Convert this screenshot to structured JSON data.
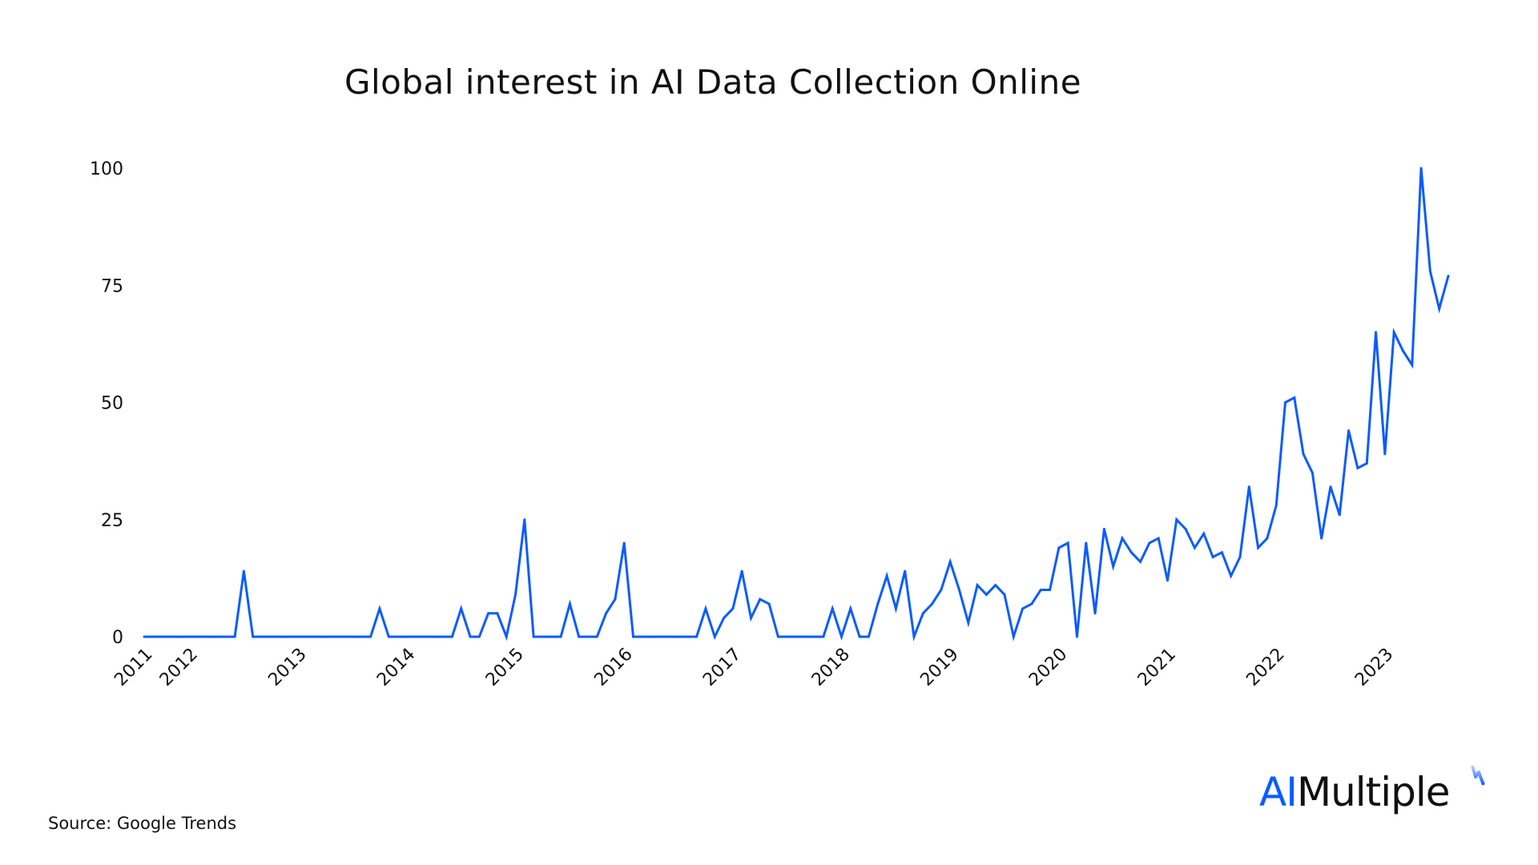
{
  "chart_data": {
    "type": "line",
    "title": "Global interest in AI Data Collection Online",
    "xlabel": "",
    "ylabel": "",
    "ylim": [
      0,
      100
    ],
    "yticks": [
      0,
      25,
      50,
      75,
      100
    ],
    "ytick_labels": [
      "0",
      "25",
      "50",
      "75",
      "100"
    ],
    "xtick_labels": [
      {
        "label": "2011",
        "index": 1
      },
      {
        "label": "2012",
        "index": 6
      },
      {
        "label": "2013",
        "index": 18
      },
      {
        "label": "2014",
        "index": 30
      },
      {
        "label": "2015",
        "index": 42
      },
      {
        "label": "2016",
        "index": 54
      },
      {
        "label": "2017",
        "index": 66
      },
      {
        "label": "2018",
        "index": 78
      },
      {
        "label": "2019",
        "index": 90
      },
      {
        "label": "2020",
        "index": 102
      },
      {
        "label": "2021",
        "index": 114
      },
      {
        "label": "2022",
        "index": 126
      },
      {
        "label": "2023",
        "index": 138
      }
    ],
    "grid": false,
    "series": [
      {
        "name": "AI Data Collection Online",
        "color": "#0a5cff",
        "values": [
          0,
          0,
          0,
          0,
          0,
          0,
          0,
          0,
          0,
          0,
          0,
          14,
          0,
          0,
          0,
          0,
          0,
          0,
          0,
          0,
          0,
          0,
          0,
          0,
          0,
          0,
          6,
          0,
          0,
          0,
          0,
          0,
          0,
          0,
          0,
          6,
          0,
          0,
          5,
          5,
          0,
          9,
          25,
          0,
          0,
          0,
          0,
          7,
          0,
          0,
          0,
          5,
          8,
          20,
          0,
          0,
          0,
          0,
          0,
          0,
          0,
          0,
          6,
          0,
          4,
          6,
          14,
          4,
          8,
          7,
          0,
          0,
          0,
          0,
          0,
          0,
          6,
          0,
          6,
          0,
          0,
          7,
          13,
          6,
          14,
          0,
          5,
          7,
          10,
          16,
          10,
          3,
          11,
          9,
          11,
          9,
          0,
          6,
          7,
          10,
          10,
          19,
          20,
          0,
          20,
          5,
          23,
          15,
          21,
          18,
          16,
          20,
          21,
          12,
          25,
          23,
          19,
          22,
          17,
          18,
          13,
          17,
          32,
          19,
          21,
          28,
          50,
          51,
          39,
          35,
          21,
          32,
          26,
          44,
          36,
          37,
          65,
          39,
          65,
          61,
          58,
          100,
          78,
          70,
          77
        ]
      }
    ]
  },
  "source": "Source: Google Trends",
  "logo": {
    "ai": "AI",
    "rest": "Multiple",
    "accent": "#0a5cff"
  }
}
